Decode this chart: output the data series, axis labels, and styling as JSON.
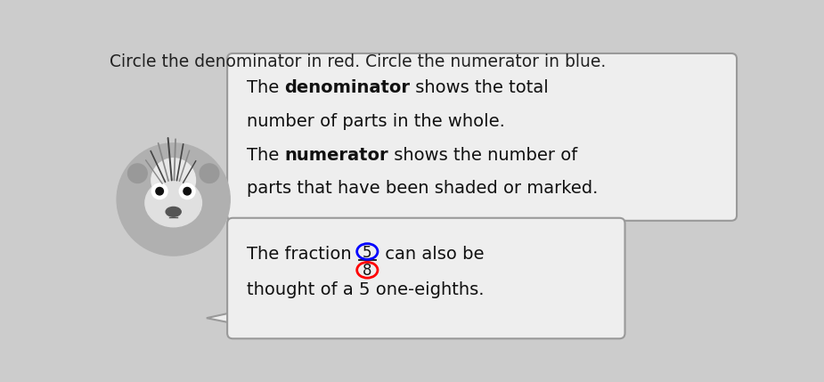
{
  "title_text": "Circle the denominator in red. Circle the numerator in blue.",
  "title_fontsize": 13.5,
  "title_color": "#222222",
  "bg_color": "#cccccc",
  "box_bg": "#eeeeee",
  "box_edge": "#999999",
  "text_color": "#111111",
  "font_size_box1": 14,
  "font_size_box2": 14,
  "red_circle_color": "red",
  "blue_circle_color": "blue",
  "box1_lines": [
    [
      [
        "The ",
        false
      ],
      [
        "denominator",
        true
      ],
      [
        " shows the total",
        false
      ]
    ],
    [
      [
        "number of parts in the whole.",
        false
      ]
    ],
    [
      [
        "The ",
        false
      ],
      [
        "numerator",
        true
      ],
      [
        " shows the number of",
        false
      ]
    ],
    [
      [
        "parts that have been shaded or marked.",
        false
      ]
    ]
  ],
  "box2_prefix": "The fraction ",
  "box2_numerator": "5",
  "box2_denominator": "8",
  "box2_suffix": " can also be",
  "box2_line2": "thought of a 5 one-eighths.",
  "hedgehog_body_color": "#aaaaaa",
  "hedgehog_face_color": "#dddddd",
  "hedgehog_dark": "#555555",
  "hedgehog_nose_color": "#777777",
  "hedgehog_white": "#ffffff",
  "spine_color": "#666666"
}
